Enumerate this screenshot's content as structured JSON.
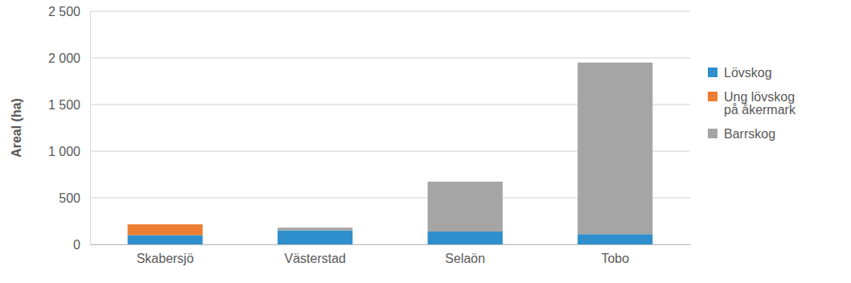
{
  "chart_data": {
    "type": "bar",
    "stacked": true,
    "grid": true,
    "legend": "right",
    "y_label": "Areal (ha)",
    "categories": [
      "Skabersjö",
      "Västerstad",
      "Selaön",
      "Tobo"
    ],
    "series": [
      {
        "name": "Lövskog",
        "color": "#2e8fcc",
        "values": [
          100,
          150,
          138,
          110
        ]
      },
      {
        "name": "Ung lövskog på åkermark",
        "color": "#ed7d31",
        "values": [
          115,
          0,
          0,
          0
        ]
      },
      {
        "name": "Barrskog",
        "color": "#a5a5a5",
        "values": [
          0,
          30,
          535,
          1840
        ]
      }
    ],
    "ylim": [
      0,
      2500
    ],
    "yticks": [
      0,
      500,
      {
        "value": 1000,
        "label": "1 000"
      },
      {
        "value": 1500,
        "label": "1 500"
      },
      {
        "value": 2000,
        "label": "2 000"
      },
      {
        "value": 2500,
        "label": "2 500"
      }
    ]
  }
}
